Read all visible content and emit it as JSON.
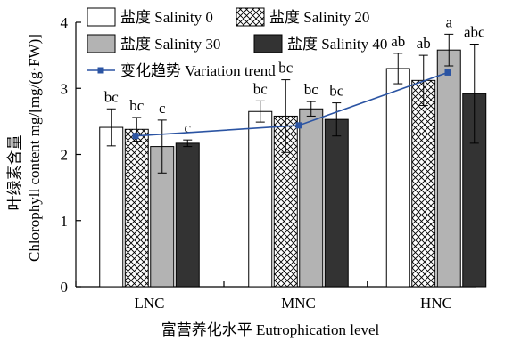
{
  "chart_data": {
    "type": "bar",
    "categories": [
      "LNC",
      "MNC",
      "HNC"
    ],
    "xlabel": "富营养化水平 Eutrophication level",
    "ylabel_zh": "叶绿素含量",
    "ylabel_en": "Chlorophyll content mg/[mg/(g·FW)]",
    "ylim": [
      0,
      4
    ],
    "yticks": [
      0,
      1,
      2,
      3,
      4
    ],
    "series": [
      {
        "name": "盐度 Salinity 0",
        "values": [
          2.41,
          2.65,
          3.3
        ],
        "errors": [
          0.28,
          0.16,
          0.23
        ],
        "letters": [
          "bc",
          "bc",
          "ab"
        ],
        "fill": "#ffffff",
        "pattern": "none"
      },
      {
        "name": "盐度 Salinity 20",
        "values": [
          2.38,
          2.58,
          3.12
        ],
        "errors": [
          0.18,
          0.55,
          0.38
        ],
        "letters": [
          "bc",
          "bc",
          "ab"
        ],
        "fill": "#ffffff",
        "pattern": "crosshatch"
      },
      {
        "name": "盐度 Salinity 30",
        "values": [
          2.12,
          2.69,
          3.58
        ],
        "errors": [
          0.4,
          0.11,
          0.24
        ],
        "letters": [
          "c",
          "bc",
          "a"
        ],
        "fill": "#b3b3b3",
        "pattern": "none"
      },
      {
        "name": "盐度 Salinity 40",
        "values": [
          2.17,
          2.53,
          2.92
        ],
        "errors": [
          0.05,
          0.25,
          0.75
        ],
        "letters": [
          "c",
          "bc",
          "abc"
        ],
        "fill": "#333333",
        "pattern": "none"
      }
    ],
    "trend": {
      "name": "变化趋势 Variation trend",
      "values": [
        2.28,
        2.44,
        3.24
      ],
      "color": "#2b54a3"
    },
    "legend_position": "top-left"
  }
}
